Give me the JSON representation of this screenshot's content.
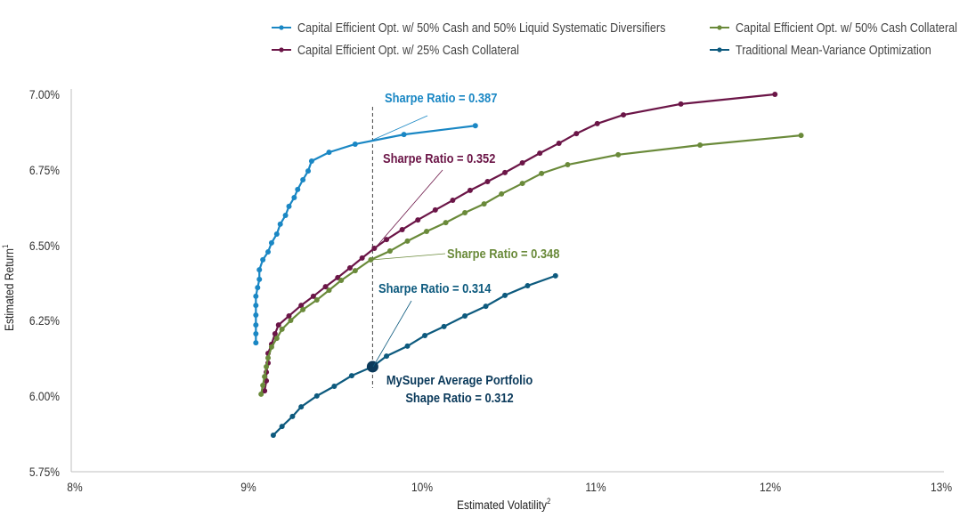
{
  "chart_data": {
    "type": "line",
    "title": "",
    "xlabel": "Estimated Volatility",
    "xlabel_sup": "2",
    "ylabel": "Estimated Return",
    "ylabel_sup": "1",
    "xlim": [
      8,
      13
    ],
    "ylim": [
      5.75,
      7.0
    ],
    "x_ticks": [
      "8%",
      "9%",
      "10%",
      "11%",
      "12%",
      "13%"
    ],
    "y_ticks": [
      "7.00%",
      "6.75%",
      "6.50%",
      "6.25%",
      "6.00%",
      "5.75%"
    ],
    "grid": false,
    "legend_position": "top-right",
    "series": [
      {
        "name": "Capital Efficient Opt. w/ 50% Cash and 50% Liquid Systematic Diversifiers",
        "color": "#1a87c4",
        "x": [
          9.06,
          9.06,
          9.06,
          9.06,
          9.06,
          9.06,
          9.07,
          9.08,
          9.08,
          9.1,
          9.13,
          9.15,
          9.18,
          9.2,
          9.23,
          9.25,
          9.28,
          9.3,
          9.33,
          9.36,
          9.38,
          9.48,
          9.63,
          9.91,
          10.32
        ],
        "y": [
          6.177,
          6.207,
          6.236,
          6.269,
          6.301,
          6.331,
          6.36,
          6.387,
          6.419,
          6.452,
          6.478,
          6.508,
          6.537,
          6.57,
          6.599,
          6.629,
          6.658,
          6.685,
          6.717,
          6.746,
          6.779,
          6.808,
          6.835,
          6.867,
          6.896
        ]
      },
      {
        "name": "Capital Efficient Opt. w/ 50% Cash Collateral",
        "color": "#6a8a3a",
        "x": [
          9.09,
          9.1,
          9.11,
          9.12,
          9.13,
          9.15,
          9.18,
          9.21,
          9.26,
          9.33,
          9.41,
          9.48,
          9.55,
          9.63,
          9.72,
          9.83,
          9.93,
          10.04,
          10.15,
          10.26,
          10.37,
          10.47,
          10.59,
          10.7,
          10.85,
          11.14,
          11.61,
          12.19
        ],
        "y": [
          6.007,
          6.036,
          6.065,
          6.098,
          6.127,
          6.163,
          6.192,
          6.222,
          6.251,
          6.287,
          6.319,
          6.351,
          6.384,
          6.416,
          6.452,
          6.481,
          6.514,
          6.546,
          6.575,
          6.608,
          6.637,
          6.67,
          6.705,
          6.738,
          6.767,
          6.8,
          6.832,
          6.864
        ]
      },
      {
        "name": "Capital Efficient Opt. w/ 25% Cash Collateral",
        "color": "#6b1547",
        "x": [
          9.11,
          9.12,
          9.12,
          9.13,
          9.13,
          9.15,
          9.17,
          9.19,
          9.25,
          9.32,
          9.39,
          9.46,
          9.53,
          9.6,
          9.67,
          9.74,
          9.81,
          9.9,
          9.99,
          10.09,
          10.19,
          10.29,
          10.39,
          10.49,
          10.59,
          10.69,
          10.8,
          10.9,
          11.02,
          11.17,
          11.5,
          12.04
        ],
        "y": [
          6.018,
          6.051,
          6.08,
          6.11,
          6.142,
          6.172,
          6.207,
          6.236,
          6.266,
          6.301,
          6.331,
          6.363,
          6.393,
          6.425,
          6.458,
          6.49,
          6.519,
          6.552,
          6.584,
          6.617,
          6.649,
          6.682,
          6.711,
          6.741,
          6.773,
          6.805,
          6.838,
          6.87,
          6.903,
          6.932,
          6.968,
          7.0
        ]
      },
      {
        "name": "Traditional Mean-Variance Optimization",
        "color": "#0d5a7e",
        "x": [
          9.16,
          9.21,
          9.27,
          9.32,
          9.41,
          9.51,
          9.61,
          9.73,
          9.81,
          9.93,
          10.03,
          10.14,
          10.26,
          10.38,
          10.49,
          10.62,
          10.78
        ],
        "y": [
          5.871,
          5.9,
          5.933,
          5.965,
          6.001,
          6.033,
          6.068,
          6.098,
          6.133,
          6.166,
          6.201,
          6.231,
          6.266,
          6.298,
          6.334,
          6.366,
          6.399
        ]
      }
    ],
    "highlight_point": {
      "name": "MySuper Average Portfolio",
      "x": 9.73,
      "y": 6.098,
      "color": "#0b3a5b"
    },
    "reference_line_x": 9.73,
    "annotations": [
      {
        "text": "Sharpe Ratio = 0.387",
        "color": "#1a87c4"
      },
      {
        "text": "Sharpe Ratio = 0.352",
        "color": "#6b1547"
      },
      {
        "text": "Sharpe Ratio = 0.348",
        "color": "#6a8a3a"
      },
      {
        "text": "Sharpe Ratio = 0.314",
        "color": "#0d5a7e"
      },
      {
        "text": "MySuper Average Portfolio",
        "color": "#0b3a5b"
      },
      {
        "text": "Shape Ratio = 0.312",
        "color": "#0b3a5b"
      }
    ]
  }
}
